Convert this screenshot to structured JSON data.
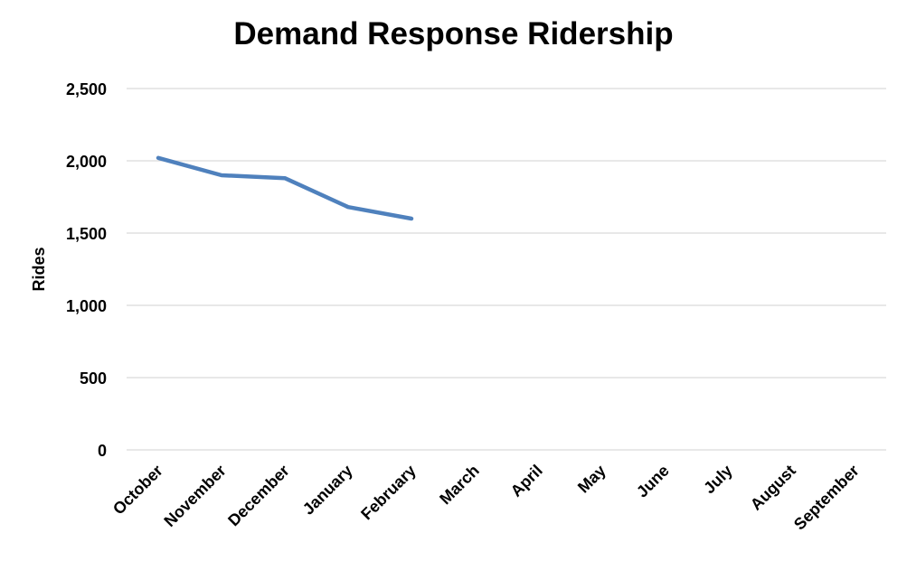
{
  "chart_data": {
    "type": "line",
    "title": "Demand Response Ridership",
    "xlabel": "",
    "ylabel": "Rides",
    "ylim": [
      0,
      2500
    ],
    "yticks": [
      0,
      500,
      1000,
      1500,
      2000,
      2500
    ],
    "ytick_labels": [
      "0",
      "500",
      "1,000",
      "1,500",
      "2,000",
      "2,500"
    ],
    "categories": [
      "October",
      "November",
      "December",
      "January",
      "February",
      "March",
      "April",
      "May",
      "June",
      "July",
      "August",
      "September"
    ],
    "series": [
      {
        "values": [
          2020,
          1900,
          1880,
          1680,
          1600,
          null,
          null,
          null,
          null,
          null,
          null,
          null
        ],
        "color": "#4F81BD"
      }
    ],
    "grid": true,
    "gridline_color": "#D9D9D9",
    "legend": "none"
  }
}
